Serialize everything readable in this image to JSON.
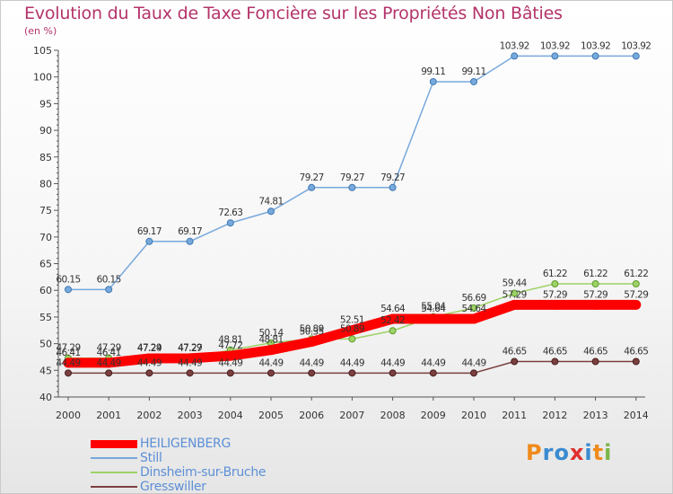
{
  "header": {
    "title": "Evolution du Taux de Taxe Foncière sur les Propriétés Non Bâties",
    "unit": "(en %)"
  },
  "branding": {
    "logo_text": "Proxiti",
    "logo_colors": [
      "#f08a1c",
      "#3a8bd0",
      "#3a8bd0",
      "#e03030",
      "#3a8bd0",
      "#f08a1c",
      "#7ab648"
    ]
  },
  "chart_data": {
    "type": "line",
    "title": "Evolution du Taux de Taxe Foncière sur les Propriétés Non Bâties",
    "ylabel": "(en %)",
    "xlabel": "",
    "ylim": [
      40,
      105
    ],
    "yticks": [
      40,
      45,
      50,
      55,
      60,
      65,
      70,
      75,
      80,
      85,
      90,
      95,
      100,
      105
    ],
    "grid": false,
    "legend_position": "bottom-left",
    "categories": [
      "2000",
      "2001",
      "2002",
      "2003",
      "2004",
      "2005",
      "2006",
      "2007",
      "2008",
      "2009",
      "2010",
      "2011",
      "2012",
      "2013",
      "2014"
    ],
    "series": [
      {
        "name": "HEILIGENBERG",
        "color": "#ff0000",
        "emphasis": true,
        "values": [
          46.41,
          46.41,
          47.24,
          47.27,
          47.72,
          48.81,
          50.35,
          52.51,
          54.64,
          54.64,
          54.64,
          57.29,
          57.29,
          57.29,
          57.29
        ],
        "labels": [
          "46.41",
          "46.41",
          "47.24",
          "47.27",
          "47.72",
          "48.81",
          "50.35",
          "52.51",
          "54.64",
          "54.64",
          "54.64",
          "57.29",
          "57.29",
          "57.29",
          "57.29"
        ]
      },
      {
        "name": "Still",
        "color": "#77a9dc",
        "values": [
          60.15,
          60.15,
          69.17,
          69.17,
          72.63,
          74.81,
          79.27,
          79.27,
          79.27,
          99.11,
          99.11,
          103.92,
          103.92,
          103.92,
          103.92
        ],
        "labels": [
          "60.15",
          "60.15",
          "69.17",
          "69.17",
          "72.63",
          "74.81",
          "79.27",
          "79.27",
          "79.27",
          "99.11",
          "99.11",
          "103.92",
          "103.92",
          "103.92",
          "103.92"
        ]
      },
      {
        "name": "Dinsheim-sur-Bruche",
        "color": "#9ed266",
        "values": [
          47.29,
          47.29,
          47.29,
          47.29,
          48.81,
          50.14,
          50.89,
          50.89,
          52.42,
          55.04,
          56.69,
          59.44,
          61.22,
          61.22,
          61.22
        ],
        "labels": [
          "47.29",
          "47.29",
          "47.29",
          "47.29",
          "48.81",
          "50.14",
          "50.89",
          "50.89",
          "52.42",
          "55.04",
          "56.69",
          "59.44",
          "61.22",
          "61.22",
          "61.22"
        ]
      },
      {
        "name": "Gresswiller",
        "color": "#7a3f3f",
        "values": [
          44.49,
          44.49,
          44.49,
          44.49,
          44.49,
          44.49,
          44.49,
          44.49,
          44.49,
          44.49,
          44.49,
          46.65,
          46.65,
          46.65,
          46.65
        ],
        "labels": [
          "44.49",
          "44.49",
          "44.49",
          "44.49",
          "44.49",
          "44.49",
          "44.49",
          "44.49",
          "44.49",
          "44.49",
          "44.49",
          "46.65",
          "46.65",
          "46.65",
          "46.65"
        ]
      }
    ]
  }
}
